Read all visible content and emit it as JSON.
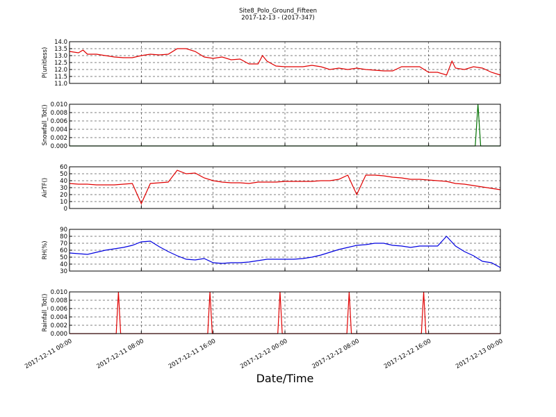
{
  "title": "Site8_Polo_Ground_Fifteen",
  "subtitle": "2017-12-13 - (2017-347)",
  "x_axis": {
    "label": "Date/Time",
    "xlim": [
      0,
      48
    ],
    "xticks": [
      {
        "value": 0,
        "label": "2017-12-11 00:00"
      },
      {
        "value": 8,
        "label": "2017-12-11 08:00"
      },
      {
        "value": 16,
        "label": "2017-12-11 16:00"
      },
      {
        "value": 24,
        "label": "2017-12-12 00:00"
      },
      {
        "value": 32,
        "label": "2017-12-12 08:00"
      },
      {
        "value": 40,
        "label": "2017-12-12 16:00"
      },
      {
        "value": 48,
        "label": "2017-12-13 00:00"
      }
    ]
  },
  "chart_data": [
    {
      "type": "line",
      "ylabel": "P(unitless)",
      "ylim": [
        11,
        14
      ],
      "yticks": [
        {
          "value": 11,
          "label": "11.0"
        },
        11.5,
        {
          "value": 12,
          "label": "12.0"
        },
        12.5,
        {
          "value": 13,
          "label": "13.0"
        },
        13.5,
        {
          "value": 14,
          "label": "14.0"
        }
      ],
      "x": [
        0,
        1,
        1.5,
        2,
        3,
        4,
        5,
        6,
        7,
        8,
        9,
        10,
        11,
        12,
        13,
        14,
        15,
        16,
        17,
        18,
        19,
        20,
        21,
        21.5,
        22,
        23,
        24,
        25,
        26,
        27,
        28,
        29,
        30,
        31,
        32,
        33,
        34,
        35,
        36,
        37,
        38,
        39,
        40,
        41,
        42,
        42.6,
        43,
        44,
        45,
        46,
        47,
        48
      ],
      "series": [
        {
          "color": "#e00000",
          "values": [
            13.3,
            13.2,
            13.4,
            13.1,
            13.1,
            13.0,
            12.9,
            12.85,
            12.85,
            13.0,
            13.1,
            13.05,
            13.1,
            13.5,
            13.5,
            13.3,
            12.9,
            12.8,
            12.9,
            12.7,
            12.75,
            12.4,
            12.4,
            13.0,
            12.6,
            12.25,
            12.2,
            12.2,
            12.2,
            12.3,
            12.2,
            12.0,
            12.1,
            12.0,
            12.1,
            12.0,
            11.95,
            11.9,
            11.9,
            12.2,
            12.2,
            12.2,
            11.8,
            11.8,
            11.6,
            12.6,
            12.1,
            12.0,
            12.2,
            12.1,
            11.8,
            11.6
          ]
        }
      ]
    },
    {
      "type": "line",
      "ylabel": "Snowfall_Tot()",
      "ylim": [
        0,
        0.01
      ],
      "yticks": [
        {
          "value": 0,
          "label": "0.000"
        },
        {
          "value": 0.002,
          "label": "0.002"
        },
        {
          "value": 0.004,
          "label": "0.004"
        },
        {
          "value": 0.006,
          "label": "0.006"
        },
        {
          "value": 0.008,
          "label": "0.008"
        },
        {
          "value": 0.01,
          "label": "0.010"
        }
      ],
      "x": [
        0,
        45.2,
        45.5,
        45.8,
        48
      ],
      "series": [
        {
          "color": "#007000",
          "values": [
            0,
            0,
            0.01,
            0,
            0
          ]
        }
      ]
    },
    {
      "type": "line",
      "ylabel": "AirTF()",
      "ylim": [
        0,
        60
      ],
      "yticks": [
        0,
        10,
        20,
        30,
        40,
        50,
        60
      ],
      "x": [
        0,
        1,
        2,
        3,
        4,
        5,
        6,
        7,
        8,
        9,
        10,
        11,
        12,
        13,
        14,
        15,
        16,
        17,
        18,
        19,
        20,
        21,
        22,
        23,
        24,
        25,
        26,
        27,
        28,
        29,
        30,
        31,
        32,
        33,
        34,
        35,
        36,
        37,
        38,
        39,
        40,
        41,
        42,
        43,
        44,
        45,
        46,
        47,
        48
      ],
      "series": [
        {
          "color": "#e00000",
          "values": [
            36,
            35,
            35,
            34,
            34,
            34,
            35,
            36,
            7,
            36,
            37,
            38,
            55,
            50,
            51,
            44,
            40,
            38,
            37,
            37,
            36,
            38,
            38,
            38,
            39,
            39,
            39,
            39,
            40,
            40,
            42,
            48,
            20,
            48,
            48,
            47,
            45,
            44,
            42,
            42,
            41,
            40,
            39,
            36,
            35,
            33,
            31,
            29,
            27
          ]
        }
      ]
    },
    {
      "type": "line",
      "ylabel": "RH(%)",
      "ylim": [
        30,
        90
      ],
      "yticks": [
        30,
        40,
        50,
        60,
        70,
        80,
        90
      ],
      "x": [
        0,
        1,
        2,
        3,
        4,
        5,
        6,
        7,
        8,
        9,
        10,
        11,
        12,
        13,
        14,
        15,
        16,
        17,
        18,
        19,
        20,
        21,
        22,
        23,
        24,
        25,
        26,
        27,
        28,
        29,
        30,
        31,
        32,
        33,
        34,
        35,
        36,
        37,
        38,
        39,
        40,
        41,
        42,
        43,
        44,
        45,
        46,
        47,
        48
      ],
      "series": [
        {
          "color": "#0000e0",
          "values": [
            56,
            55,
            54,
            57,
            60,
            62,
            64,
            67,
            72,
            73,
            65,
            58,
            52,
            47,
            46,
            48,
            42,
            41,
            42,
            42,
            43,
            45,
            47,
            47,
            47,
            47,
            48,
            50,
            53,
            57,
            61,
            64,
            67,
            68,
            70,
            70,
            67,
            66,
            64,
            66,
            66,
            66,
            80,
            66,
            58,
            52,
            44,
            42,
            35
          ]
        }
      ]
    },
    {
      "type": "line",
      "ylabel": "Rainfall_Tot()",
      "ylim": [
        0,
        0.01
      ],
      "yticks": [
        {
          "value": 0,
          "label": "0.000"
        },
        {
          "value": 0.002,
          "label": "0.002"
        },
        {
          "value": 0.004,
          "label": "0.004"
        },
        {
          "value": 0.006,
          "label": "0.006"
        },
        {
          "value": 0.008,
          "label": "0.008"
        },
        {
          "value": 0.01,
          "label": "0.010"
        }
      ],
      "x": [
        0,
        5.2,
        5.45,
        5.7,
        15.4,
        15.65,
        15.9,
        23.2,
        23.45,
        23.7,
        30.9,
        31.15,
        31.4,
        39.2,
        39.45,
        39.7,
        48
      ],
      "series": [
        {
          "color": "#e00000",
          "values": [
            0,
            0,
            0.01,
            0,
            0,
            0.01,
            0,
            0,
            0.01,
            0,
            0,
            0.01,
            0,
            0,
            0.01,
            0,
            0
          ]
        }
      ]
    }
  ]
}
